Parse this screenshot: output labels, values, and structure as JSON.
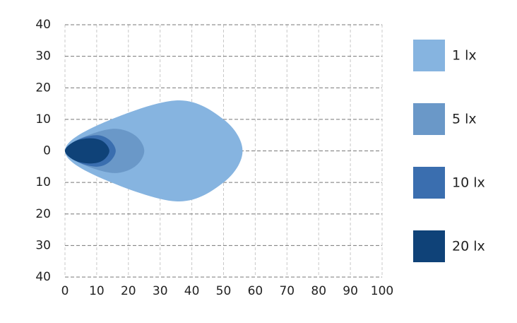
{
  "chart_data": {
    "type": "isolux",
    "xlim": [
      0,
      100
    ],
    "xticks": [
      0,
      10,
      20,
      30,
      40,
      50,
      60,
      70,
      80,
      90,
      100
    ],
    "ylim": [
      -40,
      40
    ],
    "yticks": [
      {
        "value": -40,
        "label": "40"
      },
      {
        "value": -30,
        "label": "30"
      },
      {
        "value": -20,
        "label": "20"
      },
      {
        "value": -10,
        "label": "10"
      },
      0,
      10,
      20,
      30,
      40
    ],
    "grid": true,
    "legend": "right",
    "series": [
      {
        "name": "1 lx",
        "color": "#86b4e0",
        "x": [
          0,
          10,
          35,
          50,
          56,
          50,
          35,
          10
        ],
        "y": [
          0,
          8,
          16,
          10,
          0,
          -10,
          -16,
          -8
        ]
      },
      {
        "name": "5 lx",
        "color": "#6a98c8",
        "x": [
          0,
          5,
          15,
          22,
          25,
          22,
          15,
          5
        ],
        "y": [
          0,
          4,
          7,
          5,
          0,
          -5,
          -7,
          -4
        ]
      },
      {
        "name": "10 lx",
        "color": "#3a6eaf",
        "x": [
          0,
          4,
          10,
          14,
          16,
          14,
          10,
          4
        ],
        "y": [
          0,
          3.5,
          5,
          3.5,
          0,
          -3.5,
          -5,
          -3.5
        ]
      },
      {
        "name": "20 lx",
        "color": "#0f4278",
        "x": [
          0,
          3,
          8,
          12,
          14,
          12,
          8,
          3
        ],
        "y": [
          0,
          3,
          4,
          3,
          0,
          -3,
          -4,
          -3
        ]
      }
    ]
  }
}
